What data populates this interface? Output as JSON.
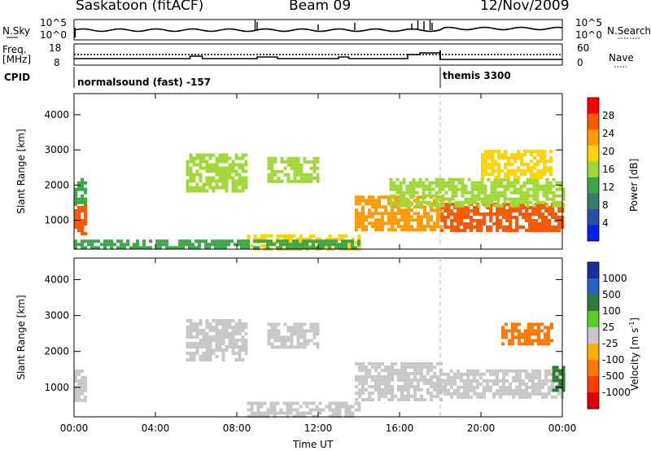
{
  "header": {
    "station": "Saskatoon (fitACF)",
    "beam": "Beam 09",
    "date": "12/Nov/2009"
  },
  "top_panels": {
    "nsky_label": "N.Sky",
    "nsky_ticks": [
      "10^5",
      "10^0"
    ],
    "nsearch_label": "N.Search",
    "nsearch_ticks": [
      "10^5",
      "10^0"
    ],
    "freq_label_1": "Freq.",
    "freq_label_2": "[MHz]",
    "freq_ticks": [
      "18",
      "8"
    ],
    "nave_label": "Nave",
    "nave_ticks": [
      "60",
      "0"
    ],
    "cpid_label": "CPID",
    "cpid_modes": [
      {
        "name": "normalsound (fast) -157",
        "start": "00:00",
        "end": "18:00"
      },
      {
        "name": "themis 3300",
        "start": "18:00",
        "end": "24:00"
      }
    ]
  },
  "x_axis": {
    "label": "Time UT",
    "ticks": [
      "00:00",
      "04:00",
      "08:00",
      "12:00",
      "16:00",
      "20:00",
      "00:00"
    ]
  },
  "chart_data": [
    {
      "type": "heatmap",
      "title": "",
      "quantity": "Power [dB]",
      "xlabel": "Time UT",
      "ylabel": "Slant Range [km]",
      "xlim": [
        0,
        24
      ],
      "ylim": [
        180,
        4600
      ],
      "yticks": [
        1000,
        2000,
        3000,
        4000
      ],
      "colorbar": {
        "label": "Power [dB]",
        "ticks": [
          "28",
          "24",
          "20",
          "16",
          "12",
          "8",
          "4"
        ],
        "colors": [
          "#ff0000",
          "#ff5a00",
          "#ff9a00",
          "#ffd400",
          "#a0d838",
          "#3aa848",
          "#3a7a6a",
          "#2a4eaa",
          "#0022ee"
        ]
      },
      "regions": [
        {
          "t": [
            0.0,
            0.6
          ],
          "r": [
            600,
            1500
          ],
          "level": 26
        },
        {
          "t": [
            0.0,
            0.5
          ],
          "r": [
            1500,
            2200
          ],
          "level": 10
        },
        {
          "t": [
            5.5,
            8.5
          ],
          "r": [
            1800,
            2900
          ],
          "level": 12
        },
        {
          "t": [
            9.5,
            12.0
          ],
          "r": [
            2100,
            2800
          ],
          "level": 12
        },
        {
          "t": [
            8.5,
            14.0
          ],
          "r": [
            200,
            600
          ],
          "level": 18
        },
        {
          "t": [
            0.0,
            14.0
          ],
          "r": [
            180,
            450
          ],
          "level": 9
        },
        {
          "t": [
            13.8,
            18.0
          ],
          "r": [
            700,
            1700
          ],
          "level": 22
        },
        {
          "t": [
            18.0,
            24.0
          ],
          "r": [
            700,
            1500
          ],
          "level": 27
        },
        {
          "t": [
            15.5,
            24.0
          ],
          "r": [
            1400,
            2200
          ],
          "level": 14
        },
        {
          "t": [
            20.0,
            23.5
          ],
          "r": [
            2200,
            3000
          ],
          "level": 18
        }
      ]
    },
    {
      "type": "heatmap",
      "title": "",
      "quantity": "Velocity [m s^-1]",
      "xlabel": "Time UT",
      "ylabel": "Slant Range [km]",
      "xlim": [
        0,
        24
      ],
      "ylim": [
        180,
        4600
      ],
      "yticks": [
        1000,
        2000,
        3000,
        4000
      ],
      "colorbar": {
        "label": "Velocity [m s",
        "label_sup": "-1",
        "label_end": "]",
        "ticks": [
          "1000",
          "500",
          "100",
          "25",
          "-25",
          "-100",
          "-500",
          "-1000"
        ],
        "colors": [
          "#1a2ea0",
          "#2860c8",
          "#2e7d32",
          "#5ccc2c",
          "#c8c8c8",
          "#ffb000",
          "#ff7800",
          "#ff3c00",
          "#e00000"
        ]
      },
      "regions": [
        {
          "t": [
            0.0,
            0.6
          ],
          "r": [
            600,
            1500
          ],
          "level": 0
        },
        {
          "t": [
            5.5,
            8.5
          ],
          "r": [
            1800,
            2900
          ],
          "level": 0
        },
        {
          "t": [
            9.5,
            12.0
          ],
          "r": [
            2100,
            2800
          ],
          "level": 0
        },
        {
          "t": [
            8.5,
            14.0
          ],
          "r": [
            200,
            600
          ],
          "level": 0
        },
        {
          "t": [
            13.8,
            18.0
          ],
          "r": [
            700,
            1700
          ],
          "level": 0
        },
        {
          "t": [
            18.0,
            24.0
          ],
          "r": [
            700,
            1500
          ],
          "level": 0
        },
        {
          "t": [
            21.0,
            23.5
          ],
          "r": [
            2200,
            2800
          ],
          "level": -300
        },
        {
          "t": [
            23.5,
            24.0
          ],
          "r": [
            800,
            1600
          ],
          "level": 120
        }
      ]
    }
  ]
}
